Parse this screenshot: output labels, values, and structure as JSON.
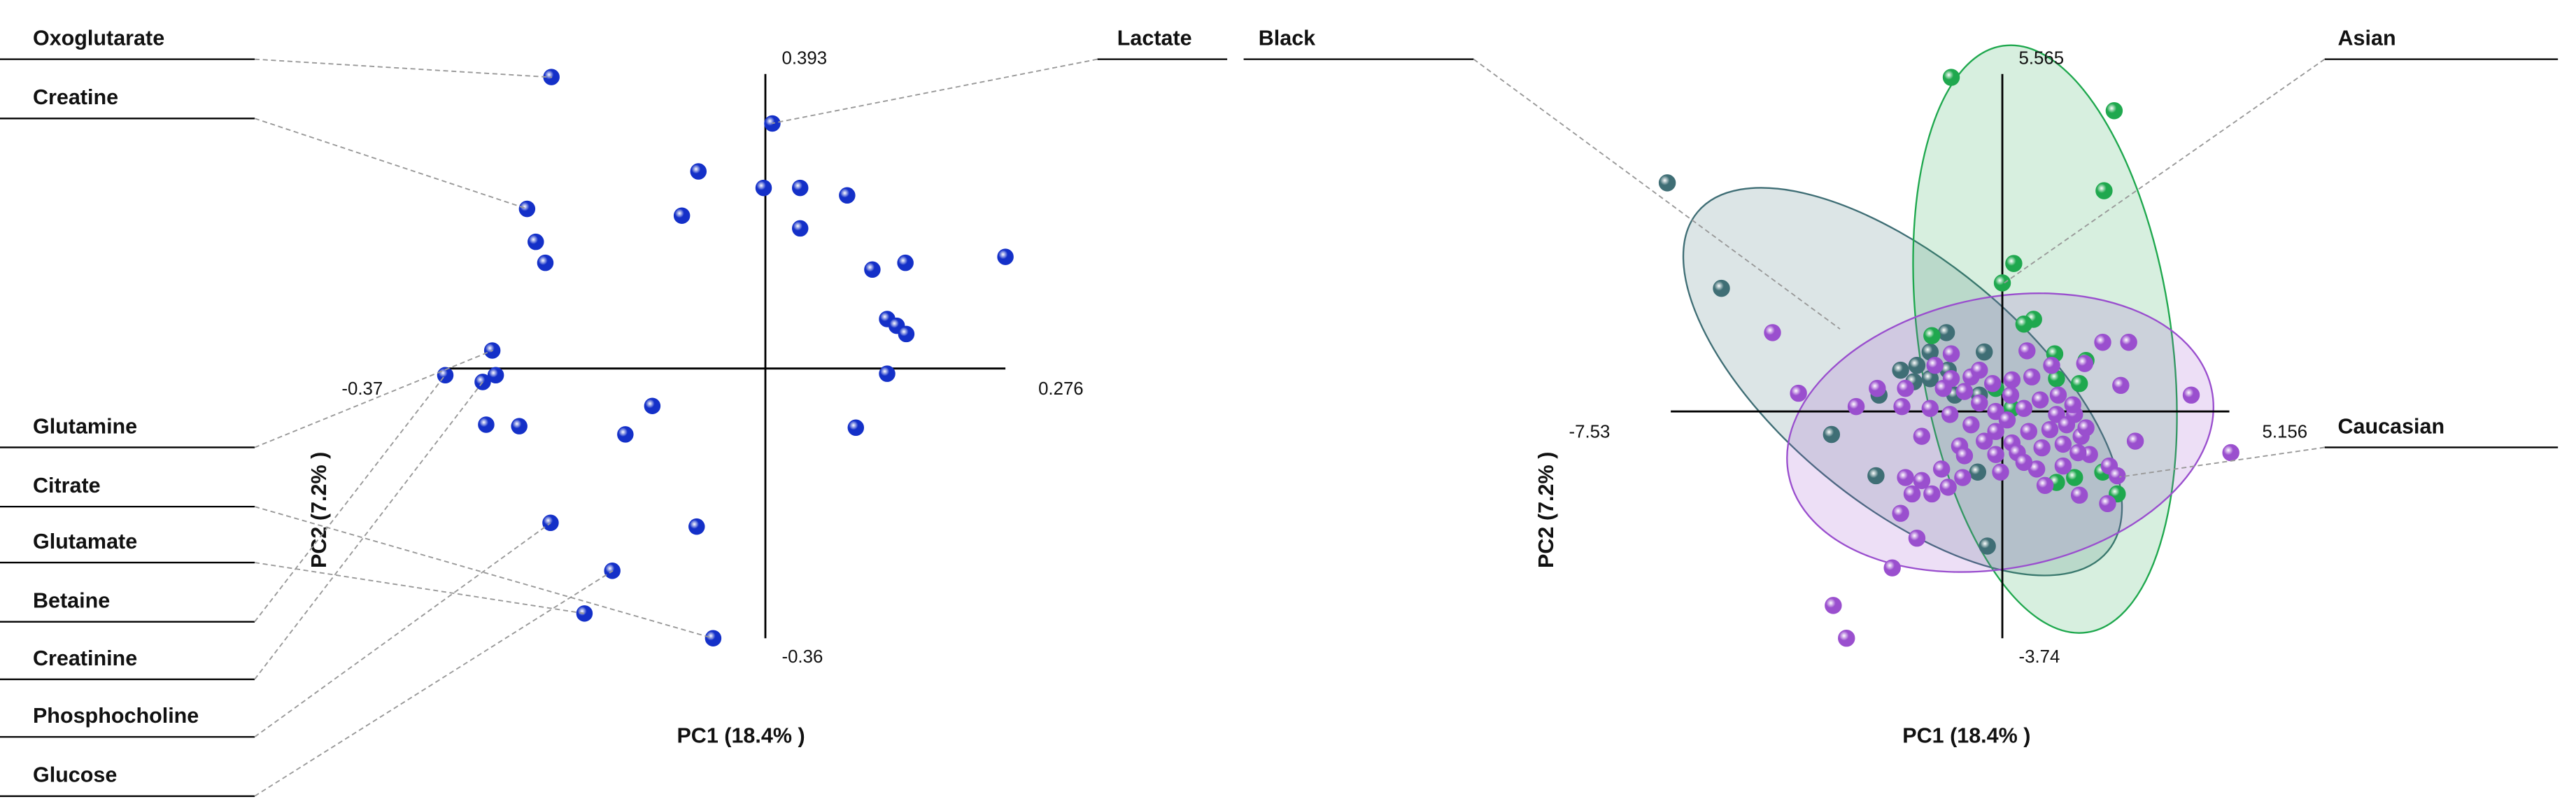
{
  "chart_data": [
    {
      "type": "scatter",
      "xlabel": "PC1 (18.4% )",
      "ylabel": "PC2 (7.2% )",
      "xlim": [
        -0.37,
        0.276
      ],
      "ylim": [
        -0.36,
        0.393
      ],
      "xticks": [
        -0.37,
        0.276
      ],
      "yticks": [
        -0.36,
        0.393
      ],
      "color": "#1430c8",
      "x": [
        -0.246,
        0.008,
        -0.077,
        -0.096,
        -0.002,
        0.04,
        0.094,
        0.04,
        -0.274,
        -0.264,
        -0.253,
        0.123,
        0.161,
        0.276,
        0.14,
        0.151,
        0.162,
        -0.314,
        -0.368,
        -0.325,
        -0.31,
        0.14,
        -0.13,
        -0.321,
        -0.283,
        -0.161,
        0.104,
        -0.247,
        -0.079,
        -0.176,
        -0.208,
        -0.06
      ],
      "y": [
        0.389,
        0.327,
        0.263,
        0.204,
        0.241,
        0.241,
        0.231,
        0.187,
        0.213,
        0.169,
        0.141,
        0.132,
        0.141,
        0.149,
        0.066,
        0.057,
        0.046,
        0.024,
        -0.009,
        -0.018,
        -0.009,
        -0.007,
        -0.05,
        -0.075,
        -0.077,
        -0.088,
        -0.079,
        -0.206,
        -0.211,
        -0.27,
        -0.327,
        -0.36
      ],
      "annotations": [
        "Oxoglutarate",
        "Creatine",
        "Glutamine",
        "Citrate",
        "Glutamate",
        "Betaine",
        "Creatinine",
        "Phosphocholine",
        "Glucose",
        "Lactate"
      ]
    },
    {
      "type": "scatter",
      "xlabel": "PC1 (18.4% )",
      "ylabel": "PC2 (7.2% )",
      "xlim": [
        -7.53,
        5.156
      ],
      "ylim": [
        -3.74,
        5.565
      ],
      "xticks": [
        -7.53,
        5.156
      ],
      "yticks": [
        -3.74,
        5.565
      ],
      "ellipses": true,
      "series": [
        {
          "name": "Black",
          "color": "#3f6e75",
          "x": [
            -7.61,
            -6.38,
            -1.27,
            -1.64,
            -2.01,
            -2.31,
            -2.8,
            -1.94,
            -0.41,
            -0.52,
            -3.88,
            -2.87,
            -0.56,
            -1.64,
            -1.23,
            -0.34,
            -1.08
          ],
          "y": [
            3.77,
            2.03,
            1.3,
            0.98,
            0.49,
            0.68,
            0.27,
            0.76,
            0.98,
            0.27,
            -0.38,
            -1.06,
            -1.0,
            0.54,
            0.68,
            -2.22,
            0.27
          ]
        },
        {
          "name": "Asian",
          "color": "#1fa84e",
          "x": [
            -1.16,
            2.54,
            2.31,
            0.26,
            0.0,
            0.71,
            0.49,
            -1.6,
            1.19,
            1.9,
            1.23,
            1.75,
            -0.15,
            0.22,
            1.23,
            2.61,
            2.28,
            1.64
          ],
          "y": [
            5.51,
            4.96,
            3.64,
            2.44,
            2.12,
            1.52,
            1.44,
            1.25,
            0.95,
            0.84,
            0.54,
            0.46,
            0.38,
            0.05,
            -1.17,
            -1.36,
            -1.0,
            -1.09
          ]
        },
        {
          "name": "Caucasian",
          "color": "#9a4fce",
          "x": [
            -5.22,
            -4.63,
            -3.32,
            -2.84,
            -2.28,
            -1.83,
            -2.2,
            -1.16,
            -1.53,
            -0.71,
            -0.22,
            0.22,
            0.67,
            1.12,
            1.87,
            2.28,
            2.87,
            2.69,
            4.29,
            3.02,
            5.19,
            -1.16,
            -0.86,
            -0.52,
            -0.15,
            0.11,
            0.49,
            0.86,
            1.27,
            1.64,
            1.79,
            1.98,
            2.43,
            2.61,
            2.39,
            1.75,
            1.38,
            0.9,
            0.6,
            0.22,
            -0.15,
            -0.41,
            -0.71,
            -1.19,
            -1.64,
            -0.97,
            -1.38,
            -1.83,
            -2.05,
            -1.23,
            -0.9,
            -0.15,
            0.34,
            1.08,
            1.38,
            1.72,
            0.78,
            0.97,
            0.49,
            1.23,
            1.46,
            1.9,
            0.19,
            -0.52,
            -2.31,
            -1.94,
            -2.5,
            -3.84,
            -3.54,
            0.56,
            -1.34,
            -0.04,
            1.6,
            -0.86,
            -1.6,
            -2.2
          ],
          "y": [
            1.3,
            0.3,
            0.08,
            0.38,
            0.08,
            -0.41,
            0.38,
            0.95,
            0.76,
            0.57,
            0.46,
            0.52,
            0.57,
            0.76,
            0.79,
            1.14,
            1.14,
            0.43,
            0.27,
            -0.49,
            -0.68,
            0.54,
            0.33,
            0.14,
            0.0,
            -0.14,
            0.05,
            0.19,
            0.27,
            -0.05,
            -0.41,
            -0.71,
            -0.9,
            -1.06,
            -1.52,
            -1.38,
            -0.9,
            -0.6,
            -0.33,
            -0.52,
            -0.33,
            -0.49,
            -0.22,
            -0.05,
            0.05,
            -0.57,
            -0.95,
            -1.14,
            -1.36,
            -1.25,
            -1.09,
            -0.71,
            -0.68,
            -0.3,
            -0.54,
            -0.68,
            -0.95,
            -1.22,
            -0.84,
            -0.05,
            -0.22,
            -0.27,
            0.27,
            0.68,
            -1.68,
            -2.09,
            -2.58,
            -3.2,
            -3.74,
            1.0,
            0.38,
            -1.0,
            0.11,
            -0.73,
            -1.36,
            -1.09
          ]
        }
      ]
    }
  ]
}
